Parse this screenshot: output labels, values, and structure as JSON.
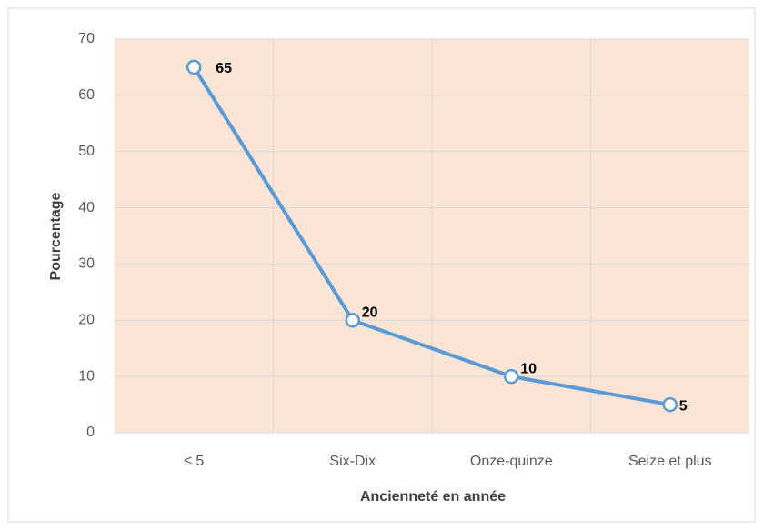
{
  "chart_data": {
    "type": "line",
    "x_label": "Ancienneté en année",
    "y_label": "Pourcentage",
    "categories": [
      "≤ 5",
      "Six-Dix",
      "Onze-quinze",
      "Seize et plus"
    ],
    "series": [
      {
        "name": "Pourcentage",
        "color": "#5b9bd5",
        "values": [
          65,
          20,
          10,
          5
        ]
      }
    ],
    "ylim": [
      0,
      70
    ],
    "yticks": [
      0,
      10,
      20,
      30,
      40,
      50,
      60,
      70
    ],
    "grid": true,
    "plot_background": "#fbe5d6"
  }
}
